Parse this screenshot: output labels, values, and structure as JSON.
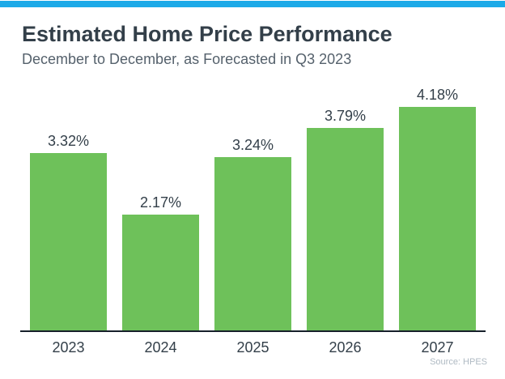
{
  "header": {
    "title": "Estimated Home Price Performance",
    "subtitle": "December to December, as Forecasted in Q3 2023"
  },
  "chart_data": {
    "type": "bar",
    "categories": [
      "2023",
      "2024",
      "2025",
      "2026",
      "2027"
    ],
    "values": [
      3.32,
      2.17,
      3.24,
      3.79,
      4.18
    ],
    "value_labels": [
      "3.32%",
      "2.17%",
      "3.24%",
      "3.79%",
      "4.18%"
    ],
    "title": "Estimated Home Price Performance",
    "subtitle": "December to December, as Forecasted in Q3 2023",
    "xlabel": "",
    "ylabel": "",
    "ylim": [
      0,
      4.5
    ],
    "grid": false,
    "legend": false,
    "bar_color": "#6EC15A",
    "source": "Source: HPES"
  },
  "footer": {
    "source": "Source: HPES"
  },
  "colors": {
    "accent_bar": "#1CAAE8",
    "bar_fill": "#6EC15A",
    "axis_line": "#17202B",
    "title_text": "#333F49",
    "subtitle_text": "#55616C",
    "source_text": "#AFBAC3"
  }
}
